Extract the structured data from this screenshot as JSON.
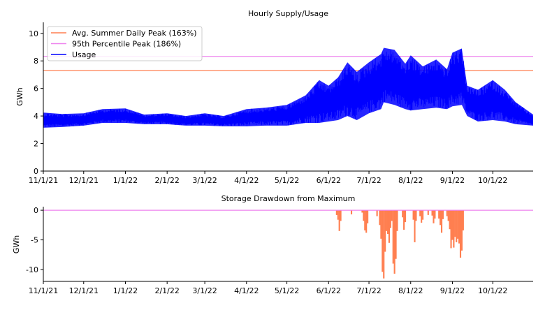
{
  "chart_data": [
    {
      "type": "line",
      "title": "Hourly Supply/Usage",
      "ylabel": "GWh",
      "xlabel": "",
      "x_tick_labels": [
        "11/1/21",
        "12/1/21",
        "1/1/22",
        "2/1/22",
        "3/1/22",
        "4/1/22",
        "5/1/22",
        "6/1/22",
        "7/1/22",
        "8/1/22",
        "9/1/22",
        "10/1/22"
      ],
      "x_tick_dates": [
        "2021-11-01",
        "2021-12-01",
        "2022-01-01",
        "2022-02-01",
        "2022-03-01",
        "2022-04-01",
        "2022-05-01",
        "2022-06-01",
        "2022-07-01",
        "2022-08-01",
        "2022-09-01",
        "2022-10-01"
      ],
      "xlim": [
        "2021-11-01",
        "2022-10-31"
      ],
      "ylim": [
        0,
        10.8
      ],
      "y_ticks": [
        0,
        2,
        4,
        6,
        8,
        10
      ],
      "grid": false,
      "legend_position": "top-left",
      "series": [
        {
          "name": "Avg. Summer Daily Peak (163%)",
          "kind": "constant",
          "color": "#ff7f50",
          "value": 7.3
        },
        {
          "name": "95th Percentile Peak (186%)",
          "kind": "constant",
          "color": "#ee82ee",
          "value": 8.33
        },
        {
          "name": "Usage",
          "kind": "band",
          "color": "#0000ff",
          "points": [
            {
              "date": "2021-11-01",
              "low": 3.15,
              "high": 4.25
            },
            {
              "date": "2021-11-15",
              "low": 3.2,
              "high": 4.15
            },
            {
              "date": "2021-12-01",
              "low": 3.3,
              "high": 4.2
            },
            {
              "date": "2021-12-15",
              "low": 3.5,
              "high": 4.5
            },
            {
              "date": "2022-01-01",
              "low": 3.5,
              "high": 4.55
            },
            {
              "date": "2022-01-15",
              "low": 3.4,
              "high": 4.1
            },
            {
              "date": "2022-02-01",
              "low": 3.4,
              "high": 4.2
            },
            {
              "date": "2022-02-15",
              "low": 3.3,
              "high": 4.0
            },
            {
              "date": "2022-03-01",
              "low": 3.3,
              "high": 4.2
            },
            {
              "date": "2022-03-15",
              "low": 3.25,
              "high": 4.0
            },
            {
              "date": "2022-04-01",
              "low": 3.25,
              "high": 4.5
            },
            {
              "date": "2022-04-15",
              "low": 3.3,
              "high": 4.6
            },
            {
              "date": "2022-05-01",
              "low": 3.3,
              "high": 4.8
            },
            {
              "date": "2022-05-15",
              "low": 3.5,
              "high": 5.5
            },
            {
              "date": "2022-05-25",
              "low": 3.5,
              "high": 6.6
            },
            {
              "date": "2022-06-01",
              "low": 3.6,
              "high": 6.2
            },
            {
              "date": "2022-06-08",
              "low": 3.7,
              "high": 6.8
            },
            {
              "date": "2022-06-15",
              "low": 4.0,
              "high": 7.9
            },
            {
              "date": "2022-06-22",
              "low": 3.7,
              "high": 7.2
            },
            {
              "date": "2022-07-01",
              "low": 4.2,
              "high": 7.9
            },
            {
              "date": "2022-07-10",
              "low": 4.5,
              "high": 8.5
            },
            {
              "date": "2022-07-12",
              "low": 5.0,
              "high": 8.95
            },
            {
              "date": "2022-07-20",
              "low": 4.8,
              "high": 8.8
            },
            {
              "date": "2022-07-28",
              "low": 4.5,
              "high": 7.8
            },
            {
              "date": "2022-08-01",
              "low": 4.4,
              "high": 8.4
            },
            {
              "date": "2022-08-10",
              "low": 4.5,
              "high": 7.6
            },
            {
              "date": "2022-08-20",
              "low": 4.6,
              "high": 8.1
            },
            {
              "date": "2022-08-28",
              "low": 4.5,
              "high": 7.4
            },
            {
              "date": "2022-09-01",
              "low": 4.7,
              "high": 8.6
            },
            {
              "date": "2022-09-08",
              "low": 4.8,
              "high": 8.9
            },
            {
              "date": "2022-09-12",
              "low": 4.0,
              "high": 6.2
            },
            {
              "date": "2022-09-20",
              "low": 3.6,
              "high": 5.9
            },
            {
              "date": "2022-10-01",
              "low": 3.7,
              "high": 6.6
            },
            {
              "date": "2022-10-10",
              "low": 3.6,
              "high": 5.9
            },
            {
              "date": "2022-10-18",
              "low": 3.4,
              "high": 5.0
            },
            {
              "date": "2022-10-31",
              "low": 3.3,
              "high": 4.1
            }
          ]
        }
      ]
    },
    {
      "type": "bar",
      "title": "Storage Drawdown from Maximum",
      "ylabel": "GWh",
      "xlabel": "",
      "x_tick_labels": [
        "11/1/21",
        "12/1/21",
        "1/1/22",
        "2/1/22",
        "3/1/22",
        "4/1/22",
        "5/1/22",
        "6/1/22",
        "7/1/22",
        "8/1/22",
        "9/1/22",
        "10/1/22"
      ],
      "x_tick_dates": [
        "2021-11-01",
        "2021-12-01",
        "2022-01-01",
        "2022-02-01",
        "2022-03-01",
        "2022-04-01",
        "2022-05-01",
        "2022-06-01",
        "2022-07-01",
        "2022-08-01",
        "2022-09-01",
        "2022-10-01"
      ],
      "xlim": [
        "2021-11-01",
        "2022-10-31"
      ],
      "ylim": [
        -12,
        0.6
      ],
      "y_ticks": [
        0,
        -5,
        -10
      ],
      "grid": false,
      "baseline_color": "#ee82ee",
      "series": [
        {
          "name": "",
          "color": "#ff7f50",
          "points": [
            {
              "date": "2022-06-07",
              "value": -0.8
            },
            {
              "date": "2022-06-08",
              "value": -1.6
            },
            {
              "date": "2022-06-09",
              "value": -3.5
            },
            {
              "date": "2022-06-10",
              "value": -1.8
            },
            {
              "date": "2022-06-18",
              "value": -0.7
            },
            {
              "date": "2022-06-26",
              "value": -0.4
            },
            {
              "date": "2022-06-27",
              "value": -1.8
            },
            {
              "date": "2022-06-28",
              "value": -3.4
            },
            {
              "date": "2022-06-29",
              "value": -3.8
            },
            {
              "date": "2022-06-30",
              "value": -2.2
            },
            {
              "date": "2022-07-07",
              "value": -1.0
            },
            {
              "date": "2022-07-09",
              "value": -2.5
            },
            {
              "date": "2022-07-10",
              "value": -4.8
            },
            {
              "date": "2022-07-11",
              "value": -10.4
            },
            {
              "date": "2022-07-12",
              "value": -11.5
            },
            {
              "date": "2022-07-13",
              "value": -7.0
            },
            {
              "date": "2022-07-14",
              "value": -3.5
            },
            {
              "date": "2022-07-15",
              "value": -4.0
            },
            {
              "date": "2022-07-16",
              "value": -5.5
            },
            {
              "date": "2022-07-17",
              "value": -3.0
            },
            {
              "date": "2022-07-18",
              "value": -1.8
            },
            {
              "date": "2022-07-19",
              "value": -9.0
            },
            {
              "date": "2022-07-20",
              "value": -10.7
            },
            {
              "date": "2022-07-21",
              "value": -8.2
            },
            {
              "date": "2022-07-22",
              "value": -3.5
            },
            {
              "date": "2022-07-26",
              "value": -1.2
            },
            {
              "date": "2022-07-27",
              "value": -3.3
            },
            {
              "date": "2022-07-28",
              "value": -2.0
            },
            {
              "date": "2022-08-03",
              "value": -1.6
            },
            {
              "date": "2022-08-04",
              "value": -5.4
            },
            {
              "date": "2022-08-05",
              "value": -1.8
            },
            {
              "date": "2022-08-08",
              "value": -1.0
            },
            {
              "date": "2022-08-09",
              "value": -2.1
            },
            {
              "date": "2022-08-10",
              "value": -1.6
            },
            {
              "date": "2022-08-14",
              "value": -0.8
            },
            {
              "date": "2022-08-17",
              "value": -0.9
            },
            {
              "date": "2022-08-18",
              "value": -2.2
            },
            {
              "date": "2022-08-19",
              "value": -1.4
            },
            {
              "date": "2022-08-22",
              "value": -1.4
            },
            {
              "date": "2022-08-23",
              "value": -2.5
            },
            {
              "date": "2022-08-24",
              "value": -3.8
            },
            {
              "date": "2022-08-25",
              "value": -1.5
            },
            {
              "date": "2022-08-28",
              "value": -1.0
            },
            {
              "date": "2022-08-29",
              "value": -1.8
            },
            {
              "date": "2022-08-30",
              "value": -3.2
            },
            {
              "date": "2022-08-31",
              "value": -6.4
            },
            {
              "date": "2022-09-01",
              "value": -5.0
            },
            {
              "date": "2022-09-02",
              "value": -6.3
            },
            {
              "date": "2022-09-03",
              "value": -4.5
            },
            {
              "date": "2022-09-04",
              "value": -5.4
            },
            {
              "date": "2022-09-05",
              "value": -4.8
            },
            {
              "date": "2022-09-06",
              "value": -5.6
            },
            {
              "date": "2022-09-07",
              "value": -8.0
            },
            {
              "date": "2022-09-08",
              "value": -6.8
            },
            {
              "date": "2022-09-09",
              "value": -3.4
            }
          ]
        }
      ]
    }
  ]
}
